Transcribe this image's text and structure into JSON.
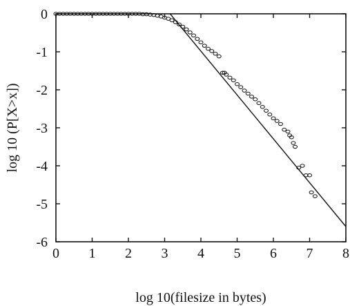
{
  "chart_data": {
    "type": "scatter",
    "title": "",
    "xlabel": "log 10(filesize in bytes)",
    "ylabel": "log 10 (P[X>x])",
    "xlim": [
      0,
      8
    ],
    "ylim": [
      -6,
      0
    ],
    "x_ticks": [
      0,
      1,
      2,
      3,
      4,
      5,
      6,
      7,
      8
    ],
    "y_ticks": [
      0,
      -1,
      -2,
      -3,
      -4,
      -5,
      -6
    ],
    "grid": false,
    "marker": "open-circle",
    "series": [
      {
        "type": "scatter",
        "points": [
          [
            0.0,
            0.0
          ],
          [
            0.1,
            0.0
          ],
          [
            0.2,
            0.0
          ],
          [
            0.3,
            0.0
          ],
          [
            0.4,
            0.0
          ],
          [
            0.5,
            0.0
          ],
          [
            0.6,
            0.0
          ],
          [
            0.7,
            0.0
          ],
          [
            0.8,
            0.0
          ],
          [
            0.9,
            0.0
          ],
          [
            1.0,
            0.0
          ],
          [
            1.1,
            0.0
          ],
          [
            1.2,
            0.0
          ],
          [
            1.3,
            0.0
          ],
          [
            1.4,
            0.0
          ],
          [
            1.5,
            0.0
          ],
          [
            1.6,
            0.0
          ],
          [
            1.7,
            0.0
          ],
          [
            1.8,
            0.0
          ],
          [
            1.9,
            0.0
          ],
          [
            2.0,
            0.0
          ],
          [
            2.1,
            0.0
          ],
          [
            2.2,
            0.0
          ],
          [
            2.3,
            0.0
          ],
          [
            2.4,
            -0.01
          ],
          [
            2.5,
            -0.01
          ],
          [
            2.6,
            -0.02
          ],
          [
            2.7,
            -0.03
          ],
          [
            2.8,
            -0.05
          ],
          [
            2.9,
            -0.07
          ],
          [
            3.0,
            -0.1
          ],
          [
            3.1,
            -0.13
          ],
          [
            3.2,
            -0.17
          ],
          [
            3.3,
            -0.22
          ],
          [
            3.4,
            -0.28
          ],
          [
            3.5,
            -0.34
          ],
          [
            3.6,
            -0.41
          ],
          [
            3.7,
            -0.49
          ],
          [
            3.8,
            -0.57
          ],
          [
            3.9,
            -0.66
          ],
          [
            4.0,
            -0.75
          ],
          [
            4.1,
            -0.84
          ],
          [
            4.2,
            -0.92
          ],
          [
            4.3,
            -0.98
          ],
          [
            4.4,
            -1.05
          ],
          [
            4.5,
            -1.12
          ],
          [
            4.6,
            -1.55
          ],
          [
            4.65,
            -1.55
          ],
          [
            4.7,
            -1.6
          ],
          [
            4.8,
            -1.68
          ],
          [
            4.9,
            -1.75
          ],
          [
            5.0,
            -1.85
          ],
          [
            5.1,
            -1.93
          ],
          [
            5.2,
            -2.02
          ],
          [
            5.3,
            -2.1
          ],
          [
            5.4,
            -2.18
          ],
          [
            5.5,
            -2.25
          ],
          [
            5.6,
            -2.35
          ],
          [
            5.7,
            -2.45
          ],
          [
            5.8,
            -2.55
          ],
          [
            5.9,
            -2.65
          ],
          [
            6.0,
            -2.75
          ],
          [
            6.1,
            -2.82
          ],
          [
            6.2,
            -2.9
          ],
          [
            6.3,
            -3.05
          ],
          [
            6.4,
            -3.1
          ],
          [
            6.45,
            -3.2
          ],
          [
            6.5,
            -3.25
          ],
          [
            6.55,
            -3.4
          ],
          [
            6.6,
            -3.5
          ],
          [
            6.7,
            -4.05
          ],
          [
            6.8,
            -4.0
          ],
          [
            6.9,
            -4.25
          ],
          [
            7.0,
            -4.25
          ],
          [
            7.05,
            -4.7
          ],
          [
            7.15,
            -4.8
          ]
        ]
      },
      {
        "type": "line",
        "points": [
          [
            3.15,
            0.0
          ],
          [
            8.0,
            -5.6
          ]
        ]
      }
    ]
  }
}
